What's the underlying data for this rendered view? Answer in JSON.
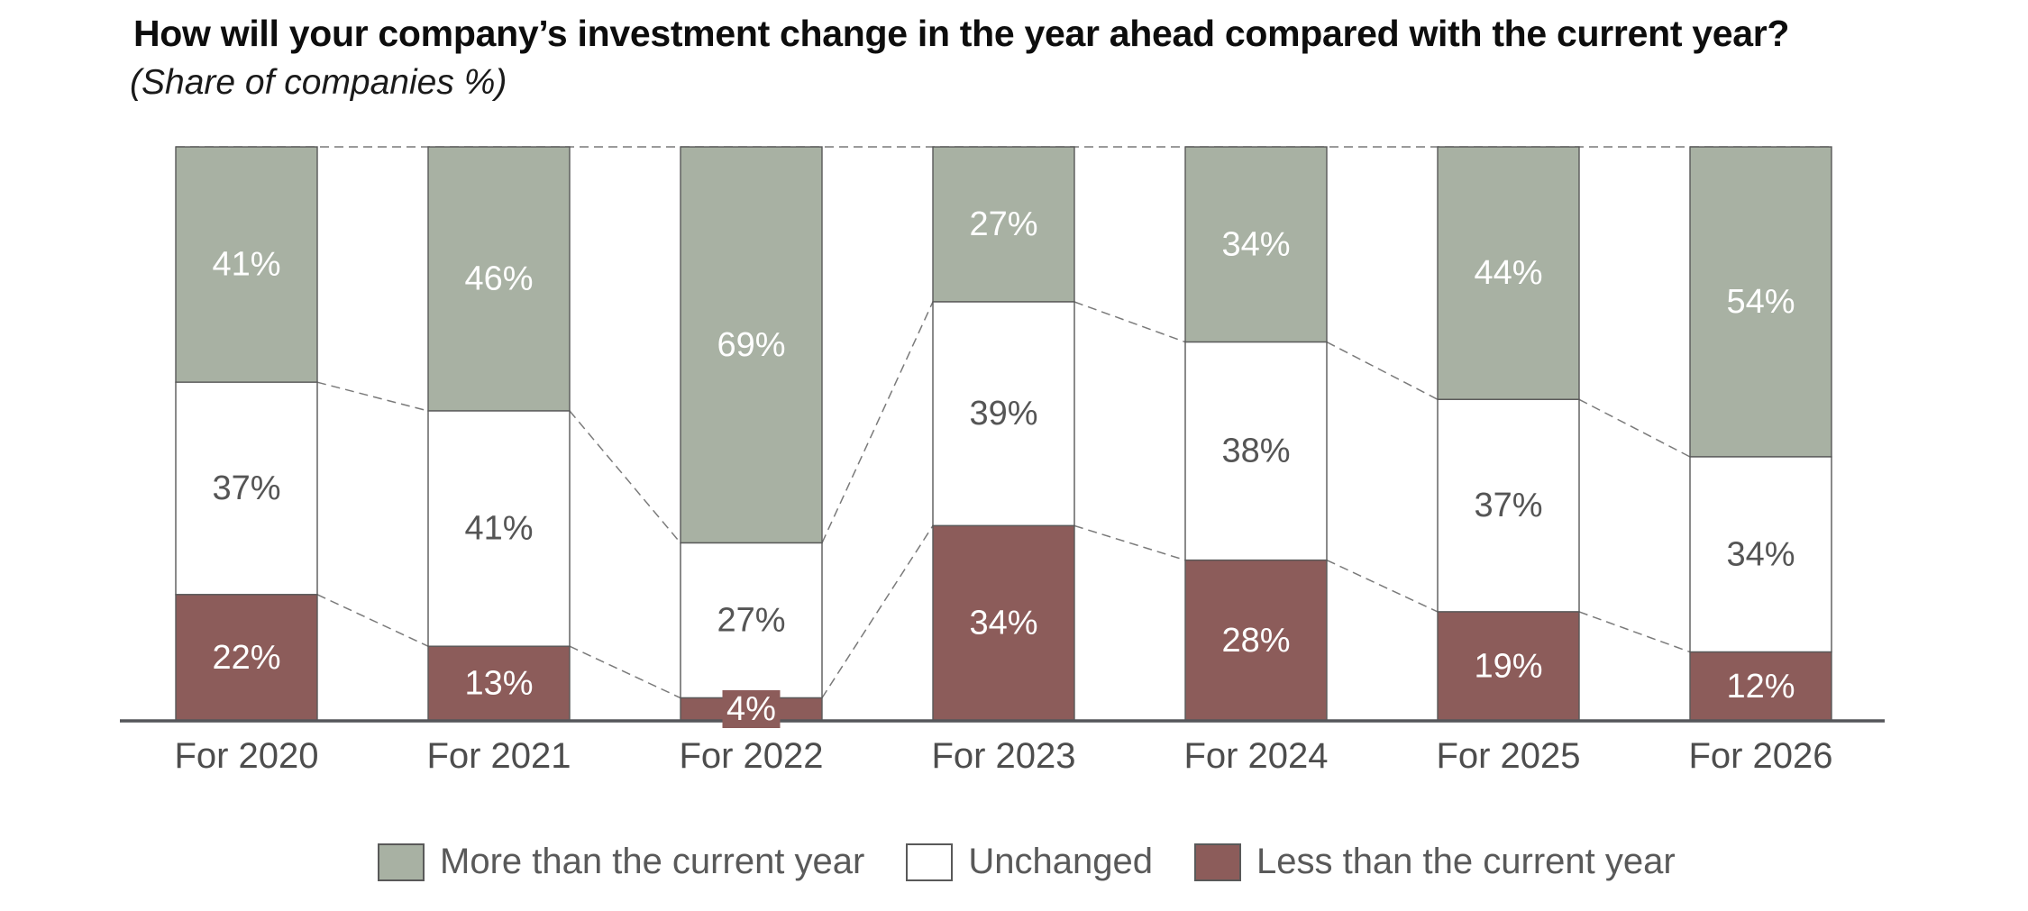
{
  "chart_data": {
    "type": "bar",
    "stacked": true,
    "title": "How will your company’s investment change in the year ahead compared with the current year?",
    "subtitle": "(Share of companies %)",
    "categories": [
      "For 2020",
      "For 2021",
      "For 2022",
      "For 2023",
      "For 2024",
      "For 2025",
      "For 2026"
    ],
    "series": [
      {
        "name": "More than the current year",
        "color": "#a8b1a3",
        "label_color": "#ffffff",
        "values": [
          41,
          46,
          69,
          27,
          34,
          44,
          54
        ]
      },
      {
        "name": "Unchanged",
        "color": "#ffffff",
        "label_color": "#555555",
        "values": [
          37,
          41,
          27,
          39,
          38,
          37,
          34
        ]
      },
      {
        "name": "Less than the current year",
        "color": "#8c5c5a",
        "label_color": "#ffffff",
        "values": [
          22,
          13,
          4,
          34,
          28,
          19,
          12
        ]
      }
    ],
    "ylim": [
      0,
      100
    ],
    "value_suffix": "%",
    "gridlines": false,
    "legend_position": "bottom",
    "annotations": {
      "top_dashed_line": "dashed line across the 100% level",
      "segment_connectors": "dashed lines linking segment boundaries of adjacent bars"
    }
  },
  "style": {
    "segment_border": "#595959",
    "axis_line": "#55565a",
    "connector_line": "#7a7a7a",
    "category_label": "#4d4d4d",
    "title_color": "#0d0d0d",
    "legend_text": "#595959"
  }
}
